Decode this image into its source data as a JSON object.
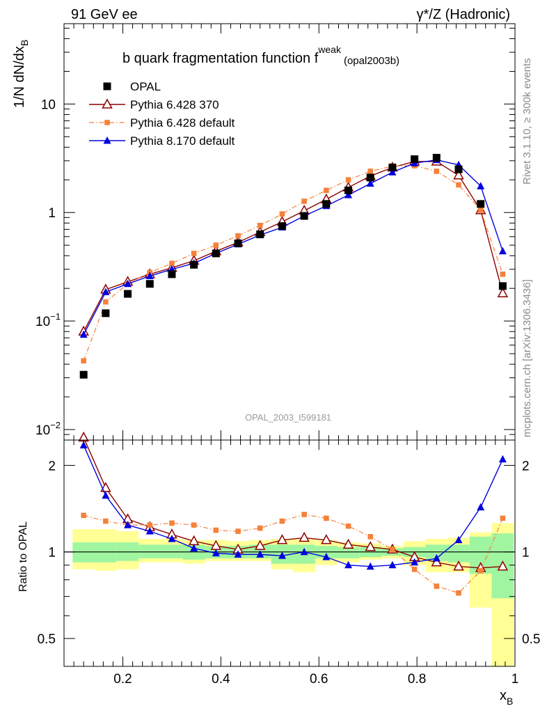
{
  "header": {
    "left": "91 GeV ee",
    "right": "γ*/Z (Hadronic)"
  },
  "side_labels": {
    "upper": "Rivet 3.1.10, ≥ 300k events",
    "lower": "mcplots.cern.ch [arXiv:1306.3436]"
  },
  "colors": {
    "opal": "#000000",
    "pythia6_370": "#8b0000",
    "pythia6_default": "#f5813a",
    "pythia8": "#0000e0",
    "band_inner": "#a0f5a0",
    "band_outer": "#ffff96"
  },
  "chart_data": [
    {
      "type": "scatter",
      "panel": "main",
      "title": "b quark fragmentation function f",
      "title_superscript": "weak",
      "title_subscript": "(opal2003b)",
      "ylabel": "1/N dN/dx",
      "ylabel_subscript": "B",
      "xlabel": "",
      "analysis_watermark": "OPAL_2003_I599181",
      "y_scale": "log",
      "xlim": [
        0.08,
        1.0
      ],
      "ylim": [
        0.008,
        55
      ],
      "y_ticks": [
        {
          "value": 0.01,
          "base": "10",
          "exp": "−2"
        },
        {
          "value": 0.1,
          "base": "10",
          "exp": "−1"
        },
        {
          "value": 1,
          "base": "1",
          "exp": ""
        },
        {
          "value": 10,
          "base": "10",
          "exp": ""
        }
      ],
      "legend_position": "top-left",
      "x": [
        0.12,
        0.165,
        0.21,
        0.255,
        0.3,
        0.345,
        0.39,
        0.435,
        0.48,
        0.525,
        0.57,
        0.615,
        0.66,
        0.705,
        0.75,
        0.795,
        0.84,
        0.885,
        0.93,
        0.975
      ],
      "series": [
        {
          "name": "OPAL",
          "marker": "square",
          "color_key": "opal",
          "values": [
            0.032,
            0.118,
            0.178,
            0.22,
            0.27,
            0.33,
            0.42,
            0.52,
            0.63,
            0.75,
            0.93,
            1.2,
            1.6,
            2.1,
            2.6,
            3.1,
            3.2,
            2.5,
            1.2,
            0.21
          ]
        },
        {
          "name": "Pythia 6.428 370",
          "marker": "open-triangle",
          "color_key": "pythia6_370",
          "values": [
            0.08,
            0.195,
            0.23,
            0.27,
            0.31,
            0.36,
            0.44,
            0.53,
            0.66,
            0.82,
            1.04,
            1.32,
            1.7,
            2.17,
            2.6,
            2.95,
            2.95,
            2.2,
            1.05,
            0.18
          ]
        },
        {
          "name": "Pythia 6.428 default",
          "marker": "small-square",
          "color_key": "pythia6_default",
          "values": [
            0.043,
            0.15,
            0.22,
            0.28,
            0.34,
            0.42,
            0.5,
            0.61,
            0.76,
            0.97,
            1.27,
            1.6,
            2.0,
            2.4,
            2.68,
            2.7,
            2.4,
            1.8,
            1.05,
            0.27
          ]
        },
        {
          "name": "Pythia 8.170 default",
          "marker": "filled-triangle",
          "color_key": "pythia8",
          "values": [
            0.075,
            0.185,
            0.22,
            0.26,
            0.3,
            0.34,
            0.42,
            0.51,
            0.62,
            0.73,
            0.93,
            1.15,
            1.45,
            1.85,
            2.35,
            2.85,
            3.05,
            2.75,
            1.75,
            0.44
          ]
        }
      ]
    },
    {
      "type": "line",
      "panel": "ratio",
      "ylabel": "Ratio to OPAL",
      "xlabel": "x",
      "xlabel_subscript": "B",
      "y_scale": "log",
      "xlim": [
        0.08,
        1.0
      ],
      "ylim": [
        0.4,
        2.45
      ],
      "x_ticks": [
        0.2,
        0.4,
        0.6,
        0.8,
        1
      ],
      "x_tick_labels": [
        "0.2",
        "0.4",
        "0.6",
        "0.8",
        "1"
      ],
      "y_ticks": [
        0.5,
        1,
        2
      ],
      "y_tick_labels": [
        "0.5",
        "1",
        "2"
      ],
      "x": [
        0.12,
        0.165,
        0.21,
        0.255,
        0.3,
        0.345,
        0.39,
        0.435,
        0.48,
        0.525,
        0.57,
        0.615,
        0.66,
        0.705,
        0.75,
        0.795,
        0.84,
        0.885,
        0.93,
        0.975
      ],
      "bands": {
        "bin_edges": [
          0.0975,
          0.1425,
          0.1875,
          0.2325,
          0.2775,
          0.3225,
          0.3675,
          0.4125,
          0.4575,
          0.5025,
          0.5475,
          0.5925,
          0.6375,
          0.6825,
          0.7275,
          0.7725,
          0.8175,
          0.8625,
          0.9075,
          0.9525,
          0.9975
        ],
        "inner_low": [
          0.92,
          0.92,
          0.93,
          0.95,
          0.95,
          0.94,
          0.95,
          0.95,
          0.95,
          0.91,
          0.91,
          0.95,
          0.95,
          0.96,
          0.97,
          0.96,
          0.93,
          0.92,
          0.84,
          0.69
        ],
        "inner_high": [
          1.08,
          1.08,
          1.08,
          1.06,
          1.06,
          1.06,
          1.05,
          1.05,
          1.06,
          1.06,
          1.06,
          1.05,
          1.04,
          1.04,
          1.03,
          1.04,
          1.06,
          1.06,
          1.13,
          1.16
        ],
        "outer_low": [
          0.87,
          0.86,
          0.87,
          0.92,
          0.92,
          0.91,
          0.93,
          0.93,
          0.93,
          0.87,
          0.85,
          0.9,
          0.92,
          0.94,
          0.95,
          0.9,
          0.85,
          0.85,
          0.64,
          0.4
        ],
        "outer_high": [
          1.2,
          1.2,
          1.18,
          1.11,
          1.11,
          1.1,
          1.1,
          1.09,
          1.1,
          1.11,
          1.11,
          1.1,
          1.08,
          1.07,
          1.05,
          1.09,
          1.11,
          1.12,
          1.17,
          1.26
        ]
      },
      "series": [
        {
          "name": "Pythia 6.428 370",
          "marker": "open-triangle",
          "color_key": "pythia6_370",
          "values": [
            2.5,
            1.67,
            1.3,
            1.22,
            1.15,
            1.09,
            1.05,
            1.02,
            1.05,
            1.1,
            1.12,
            1.1,
            1.06,
            1.04,
            1.02,
            0.96,
            0.92,
            0.89,
            0.88,
            0.89
          ]
        },
        {
          "name": "Pythia 6.428 default",
          "marker": "small-square",
          "color_key": "pythia6_default",
          "values": [
            1.34,
            1.28,
            1.24,
            1.24,
            1.26,
            1.24,
            1.19,
            1.18,
            1.21,
            1.28,
            1.35,
            1.31,
            1.23,
            1.13,
            1.02,
            0.87,
            0.76,
            0.72,
            0.86,
            1.31
          ]
        },
        {
          "name": "Pythia 8.170 default",
          "marker": "filled-triangle",
          "color_key": "pythia8",
          "values": [
            2.35,
            1.57,
            1.24,
            1.18,
            1.11,
            1.03,
            0.99,
            0.98,
            0.98,
            0.97,
            1.0,
            0.96,
            0.9,
            0.89,
            0.9,
            0.92,
            0.95,
            1.1,
            1.43,
            2.1
          ]
        }
      ]
    }
  ]
}
